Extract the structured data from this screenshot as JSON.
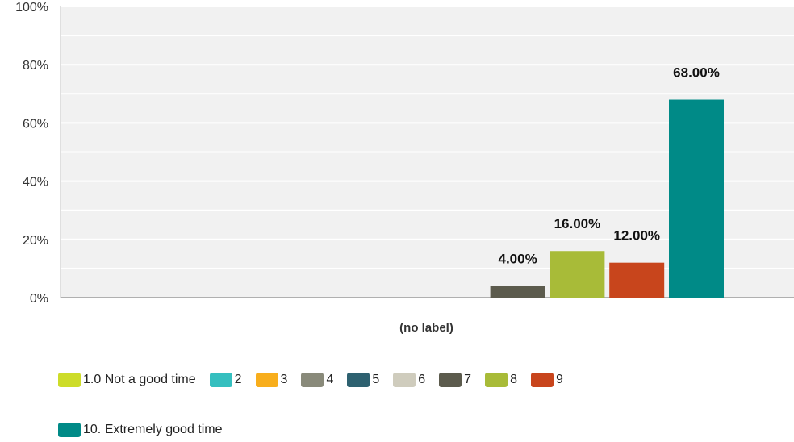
{
  "chart_data": {
    "type": "bar",
    "categories": [
      "(no label)"
    ],
    "yticks": [
      "0%",
      "20%",
      "40%",
      "60%",
      "80%",
      "100%"
    ],
    "ylim": [
      0,
      100
    ],
    "grid": true,
    "legend_position": "bottom",
    "series": [
      {
        "name": "1.0 Not a good time",
        "color": "#cddc29",
        "values": [
          0
        ],
        "label": ""
      },
      {
        "name": "2",
        "color": "#35bfbf",
        "values": [
          0
        ],
        "label": ""
      },
      {
        "name": "3",
        "color": "#f8ae1c",
        "values": [
          0
        ],
        "label": ""
      },
      {
        "name": "4",
        "color": "#898a7a",
        "values": [
          0
        ],
        "label": ""
      },
      {
        "name": "5",
        "color": "#2e6170",
        "values": [
          0
        ],
        "label": ""
      },
      {
        "name": "6",
        "color": "#cfccbd",
        "values": [
          0
        ],
        "label": ""
      },
      {
        "name": "7",
        "color": "#5c5b4d",
        "values": [
          4
        ],
        "label": "4.00%"
      },
      {
        "name": "8",
        "color": "#a8bb38",
        "values": [
          16
        ],
        "label": "16.00%"
      },
      {
        "name": "9",
        "color": "#c8451c",
        "values": [
          12
        ],
        "label": "12.00%"
      },
      {
        "name": "10. Extremely good time",
        "color": "#008a87",
        "values": [
          68
        ],
        "label": "68.00%"
      }
    ]
  }
}
